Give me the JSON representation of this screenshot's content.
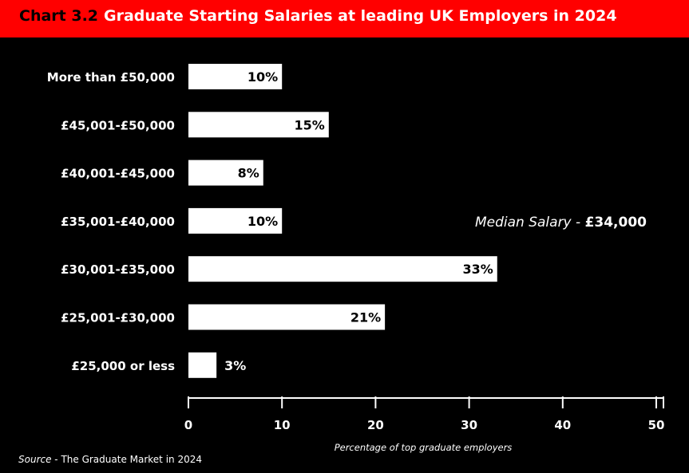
{
  "title": {
    "number": "Chart 3.2",
    "text": "Graduate Starting Salaries at leading UK Employers in 2024"
  },
  "annotation": {
    "label": "Median Salary - ",
    "value": "£34,000"
  },
  "source": {
    "prefix": "Source",
    "text": " - The Graduate Market in 2024"
  },
  "chart_data": {
    "type": "bar",
    "orientation": "horizontal",
    "categories": [
      "More than £50,000",
      "£45,001-£50,000",
      "£40,001-£45,000",
      "£35,001-£40,000",
      "£30,001-£35,000",
      "£25,001-£30,000",
      "£25,000 or less"
    ],
    "values": [
      10,
      15,
      8,
      10,
      33,
      21,
      3
    ],
    "value_labels": [
      "10%",
      "15%",
      "8%",
      "10%",
      "33%",
      "21%",
      "3%"
    ],
    "xlabel": "Percentage of top graduate employers",
    "xlim": [
      0,
      50
    ],
    "xticks": [
      0,
      10,
      20,
      30,
      40,
      50
    ],
    "grid": false,
    "bar_color": "#ffffff",
    "background": "#000000"
  },
  "colors": {
    "title_bar": "#ff0000"
  }
}
